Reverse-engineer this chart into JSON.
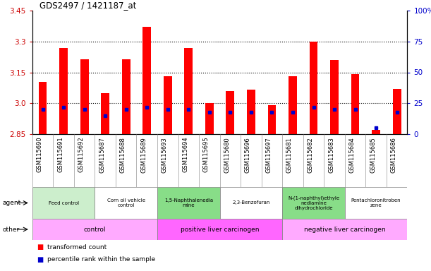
{
  "title": "GDS2497 / 1421187_at",
  "samples": [
    "GSM115690",
    "GSM115691",
    "GSM115692",
    "GSM115687",
    "GSM115688",
    "GSM115689",
    "GSM115693",
    "GSM115694",
    "GSM115695",
    "GSM115680",
    "GSM115696",
    "GSM115697",
    "GSM115681",
    "GSM115682",
    "GSM115683",
    "GSM115684",
    "GSM115685",
    "GSM115686"
  ],
  "transformed_count": [
    3.105,
    3.27,
    3.215,
    3.05,
    3.215,
    3.37,
    3.13,
    3.27,
    3.0,
    3.06,
    3.065,
    2.99,
    3.13,
    3.3,
    3.21,
    3.14,
    2.87,
    3.07
  ],
  "percentile_rank": [
    20,
    22,
    20,
    15,
    20,
    22,
    20,
    20,
    18,
    18,
    18,
    18,
    18,
    22,
    20,
    20,
    5,
    18
  ],
  "y_min": 2.85,
  "y_max": 3.45,
  "y_ticks_left": [
    2.85,
    3.0,
    3.15,
    3.3,
    3.45
  ],
  "y_ticks_right_vals": [
    0,
    25,
    50,
    75,
    100
  ],
  "dotted_lines": [
    3.0,
    3.15,
    3.3
  ],
  "bar_color": "#ff0000",
  "percentile_color": "#0000cc",
  "bar_width": 0.4,
  "agent_groups": [
    {
      "label": "Feed control",
      "start": 0,
      "end": 3,
      "color": "#cceecc"
    },
    {
      "label": "Corn oil vehicle\ncontrol",
      "start": 3,
      "end": 6,
      "color": "#ffffff"
    },
    {
      "label": "1,5-Naphthalenedia\nmine",
      "start": 6,
      "end": 9,
      "color": "#88dd88"
    },
    {
      "label": "2,3-Benzofuran",
      "start": 9,
      "end": 12,
      "color": "#ffffff"
    },
    {
      "label": "N-(1-naphthyl)ethyle\nnediamine\ndihydrochloride",
      "start": 12,
      "end": 15,
      "color": "#88dd88"
    },
    {
      "label": "Pentachloronitroben\nzene",
      "start": 15,
      "end": 18,
      "color": "#ffffff"
    }
  ],
  "other_groups": [
    {
      "label": "control",
      "start": 0,
      "end": 6,
      "color": "#ffaaff"
    },
    {
      "label": "positive liver carcinogen",
      "start": 6,
      "end": 12,
      "color": "#ff66ff"
    },
    {
      "label": "negative liver carcinogen",
      "start": 12,
      "end": 18,
      "color": "#ffaaff"
    }
  ],
  "background_color": "#ffffff",
  "plot_bg_color": "#ffffff",
  "tick_label_color_left": "#cc0000",
  "tick_label_color_right": "#0000cc",
  "xlabel_rotation": 90,
  "xtick_bg_color": "#dddddd"
}
